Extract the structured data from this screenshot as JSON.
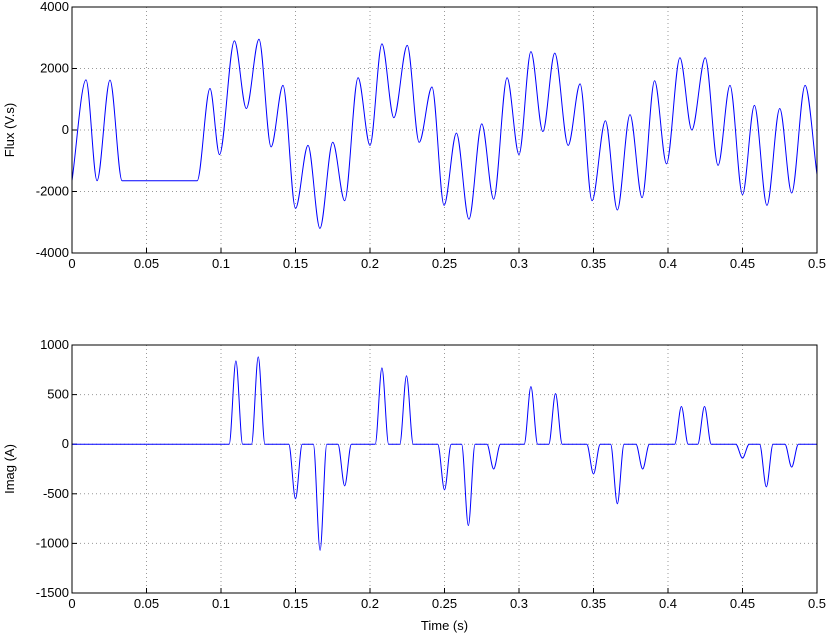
{
  "chart_data": [
    {
      "type": "line",
      "ylabel": "Flux (V.s)",
      "x": [
        0,
        0.0094,
        0.0168,
        0.0255,
        0.0336,
        0.084,
        0.0926,
        0.099,
        0.109,
        0.117,
        0.1255,
        0.1336,
        0.1416,
        0.15,
        0.1584,
        0.1664,
        0.175,
        0.183,
        0.192,
        0.2,
        0.208,
        0.216,
        0.225,
        0.233,
        0.2416,
        0.2497,
        0.258,
        0.2664,
        0.275,
        0.283,
        0.292,
        0.3,
        0.308,
        0.316,
        0.324,
        0.333,
        0.341,
        0.349,
        0.358,
        0.366,
        0.3745,
        0.3826,
        0.391,
        0.399,
        0.408,
        0.416,
        0.425,
        0.4336,
        0.4416,
        0.45,
        0.458,
        0.4664,
        0.475,
        0.483,
        0.492,
        0.5
      ],
      "series": [
        {
          "color": "#0000ff",
          "values": [
            -1650,
            1630,
            -1650,
            1620,
            -1650,
            -1650,
            1350,
            -800,
            2900,
            700,
            2950,
            -550,
            1450,
            -2550,
            -500,
            -3200,
            -400,
            -2300,
            1700,
            -500,
            2800,
            400,
            2750,
            -400,
            1400,
            -2450,
            -100,
            -2900,
            200,
            -2250,
            1700,
            -800,
            2550,
            -50,
            2500,
            -500,
            1500,
            -2300,
            300,
            -2600,
            500,
            -2200,
            1600,
            -1100,
            2350,
            0,
            2350,
            -1150,
            1450,
            -2100,
            800,
            -2450,
            700,
            -2050,
            1450,
            -1450
          ]
        }
      ],
      "xlim": [
        0,
        0.5
      ],
      "xticks": [
        0,
        0.05,
        0.1,
        0.15,
        0.2,
        0.25,
        0.3,
        0.35,
        0.4,
        0.45,
        0.5
      ],
      "ylim": [
        -4000,
        4000
      ],
      "yticks": [
        -4000,
        -2000,
        0,
        2000,
        4000
      ],
      "grid": true
    },
    {
      "type": "line",
      "ylabel": "Imag (A)",
      "xlabel": "Time (s)",
      "x": [
        0,
        0.1055,
        0.11,
        0.1145,
        0.1205,
        0.125,
        0.1295,
        0.1455,
        0.15,
        0.1545,
        0.162,
        0.1665,
        0.171,
        0.1785,
        0.183,
        0.1875,
        0.2035,
        0.208,
        0.2125,
        0.22,
        0.2245,
        0.229,
        0.2455,
        0.25,
        0.2545,
        0.2615,
        0.266,
        0.2705,
        0.2785,
        0.283,
        0.2875,
        0.3035,
        0.308,
        0.3125,
        0.32,
        0.3245,
        0.329,
        0.3455,
        0.35,
        0.3545,
        0.3615,
        0.366,
        0.3705,
        0.3785,
        0.383,
        0.3875,
        0.4045,
        0.409,
        0.4135,
        0.42,
        0.4245,
        0.429,
        0.4455,
        0.45,
        0.4545,
        0.4615,
        0.466,
        0.4705,
        0.4785,
        0.483,
        0.4875,
        0.5
      ],
      "series": [
        {
          "color": "#0000ff",
          "values": [
            0,
            0,
            840,
            0,
            0,
            880,
            0,
            0,
            -550,
            0,
            0,
            -1070,
            0,
            0,
            -420,
            0,
            0,
            770,
            0,
            0,
            690,
            0,
            0,
            -460,
            0,
            0,
            -820,
            0,
            0,
            -250,
            0,
            0,
            580,
            0,
            0,
            510,
            0,
            0,
            -300,
            0,
            0,
            -600,
            0,
            0,
            -250,
            0,
            0,
            380,
            0,
            0,
            380,
            0,
            0,
            -140,
            0,
            0,
            -430,
            0,
            0,
            -230,
            0,
            0
          ]
        }
      ],
      "xlim": [
        0,
        0.5
      ],
      "xticks": [
        0,
        0.05,
        0.1,
        0.15,
        0.2,
        0.25,
        0.3,
        0.35,
        0.4,
        0.45,
        0.5
      ],
      "ylim": [
        -1500,
        1000
      ],
      "yticks": [
        -1500,
        -1000,
        -500,
        0,
        500,
        1000
      ],
      "grid": true
    }
  ]
}
